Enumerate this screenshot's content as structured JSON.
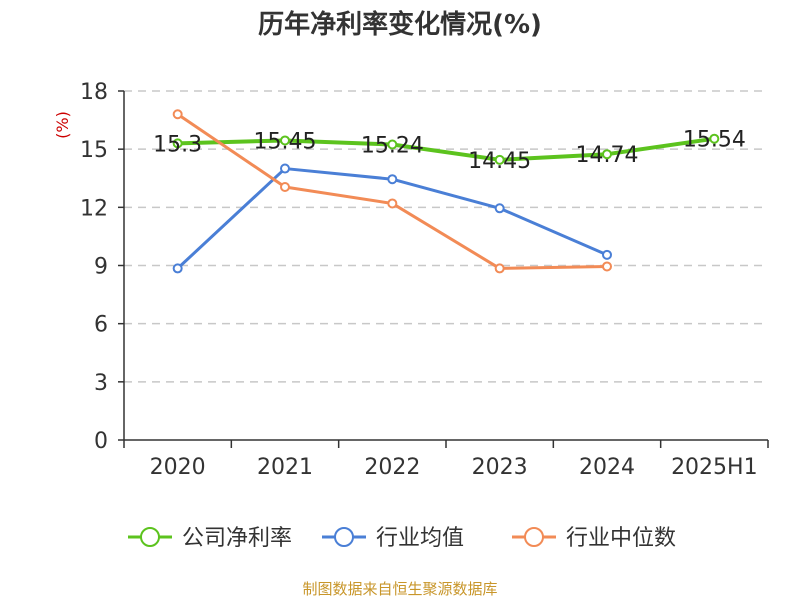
{
  "chart_data": {
    "type": "line",
    "title": "历年净利率变化情况(%)",
    "ylabel": "(%)",
    "categories": [
      "2020",
      "2021",
      "2022",
      "2023",
      "2024",
      "2025H1"
    ],
    "ylim": [
      0,
      18
    ],
    "yticks": [
      0,
      3,
      6,
      9,
      12,
      15,
      18
    ],
    "grid": true,
    "legend_position": "bottom",
    "series": [
      {
        "name": "公司净利率",
        "color": "#5cc31e",
        "values": [
          15.3,
          15.45,
          15.24,
          14.45,
          14.74,
          15.54
        ],
        "labels": [
          "15.3",
          "15.45",
          "15.24",
          "14.45",
          "14.74",
          "15.54"
        ]
      },
      {
        "name": "行业均值",
        "color": "#4a7fd6",
        "values": [
          8.85,
          14.0,
          13.45,
          11.95,
          9.55,
          null
        ]
      },
      {
        "name": "行业中位数",
        "color": "#f28b56",
        "values": [
          16.8,
          13.05,
          12.2,
          8.85,
          8.95,
          null
        ]
      }
    ]
  },
  "source": "制图数据来自恒生聚源数据库"
}
